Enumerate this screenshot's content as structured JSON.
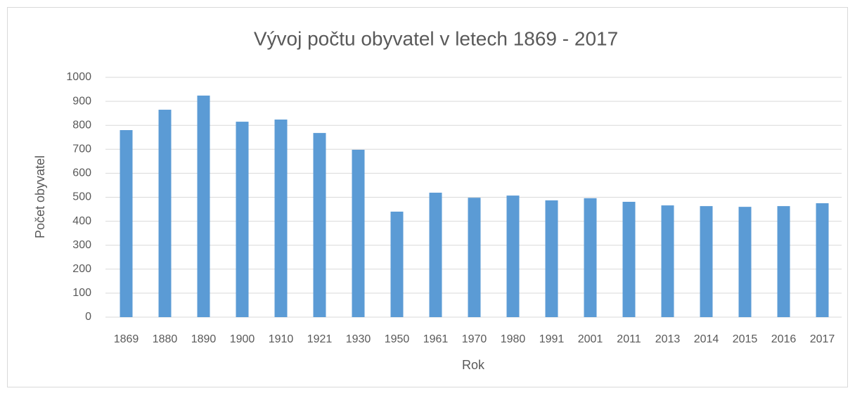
{
  "chart_data": {
    "type": "bar",
    "title": "Vývoj počtu obyvatel v letech 1869 - 2017",
    "x_label": "Rok",
    "y_label": "Počet obyvatel",
    "categories": [
      "1869",
      "1880",
      "1890",
      "1900",
      "1910",
      "1921",
      "1930",
      "1950",
      "1961",
      "1970",
      "1980",
      "1991",
      "2001",
      "2011",
      "2013",
      "2014",
      "2015",
      "2016",
      "2017"
    ],
    "values": [
      780,
      865,
      924,
      815,
      824,
      768,
      698,
      440,
      519,
      498,
      507,
      487,
      496,
      481,
      466,
      463,
      460,
      463,
      475
    ],
    "color": "#5b9bd5",
    "ylim": [
      0,
      1000
    ],
    "yticks": [
      0,
      100,
      200,
      300,
      400,
      500,
      600,
      700,
      800,
      900,
      1000
    ],
    "grid": true
  }
}
